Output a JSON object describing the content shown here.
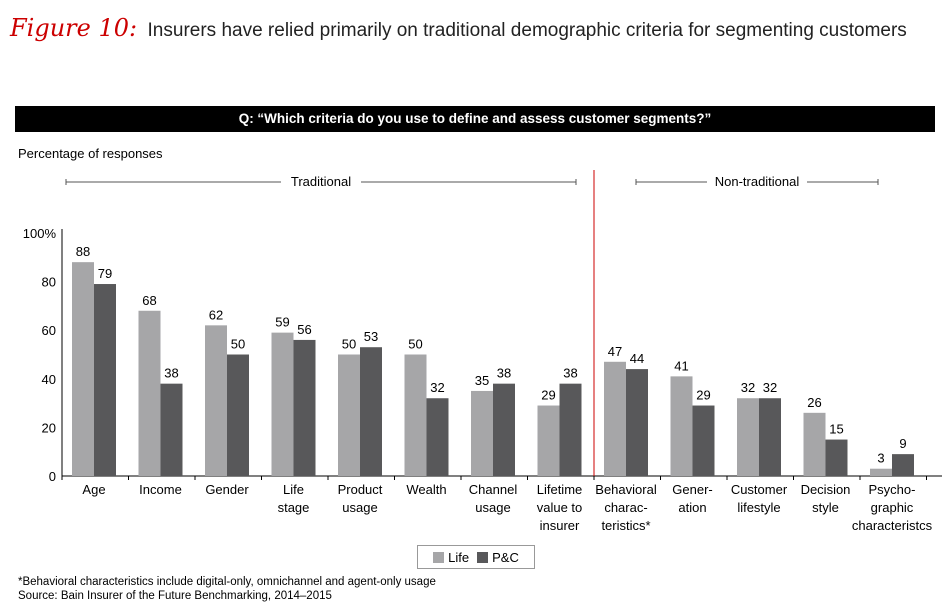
{
  "figure": {
    "label": "Figure 10:",
    "title": "Insurers have relied primarily on traditional demographic criteria for segmenting customers"
  },
  "question": "Q: “Which criteria do you use to define and assess customer segments?”",
  "y_axis_caption": "Percentage of responses",
  "groups": {
    "traditional": "Traditional",
    "non_traditional": "Non-traditional"
  },
  "legend": {
    "life": "Life",
    "pc": "P&C"
  },
  "colors": {
    "life": "#a6a6a8",
    "pc": "#58585a",
    "divider": "#cc0000"
  },
  "footnote": "*Behavioral characteristics include digital-only, omnichannel and agent-only usage",
  "source": "Source: Bain Insurer of the Future Benchmarking, 2014–2015",
  "chart_data": {
    "type": "bar",
    "title": "Which criteria do you use to define and assess customer segments?",
    "ylabel": "Percentage of responses",
    "ylim": [
      0,
      100
    ],
    "yticks": [
      "0",
      "20",
      "40",
      "60",
      "80",
      "100%"
    ],
    "categories": [
      [
        "Age"
      ],
      [
        "Income"
      ],
      [
        "Gender"
      ],
      [
        "Life",
        "stage"
      ],
      [
        "Product",
        "usage"
      ],
      [
        "Wealth"
      ],
      [
        "Channel",
        "usage"
      ],
      [
        "Lifetime",
        "value to",
        "insurer"
      ],
      [
        "Behavioral",
        "charac-",
        "teristics*"
      ],
      [
        "Gener-",
        "ation"
      ],
      [
        "Customer",
        "lifestyle"
      ],
      [
        "Decision",
        "style"
      ],
      [
        "Psycho-",
        "graphic",
        "characteristcs"
      ]
    ],
    "series": [
      {
        "name": "Life",
        "values": [
          88,
          68,
          62,
          59,
          50,
          50,
          35,
          29,
          47,
          41,
          32,
          26,
          3
        ]
      },
      {
        "name": "P&C",
        "values": [
          79,
          38,
          50,
          56,
          53,
          32,
          38,
          38,
          44,
          29,
          32,
          15,
          9
        ]
      }
    ]
  }
}
